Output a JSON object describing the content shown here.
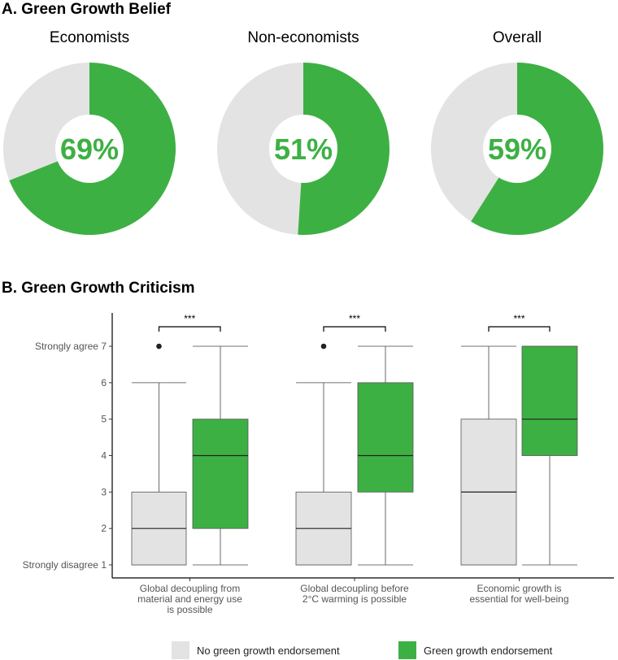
{
  "chart_data": [
    {
      "type": "pie",
      "title": "A. Green Growth Belief",
      "colors": {
        "endorse": "#3db043",
        "no": "#e3e3e3"
      },
      "pies": [
        {
          "label": "Economists",
          "value": 69,
          "text": "69%"
        },
        {
          "label": "Non-economists",
          "value": 51,
          "text": "51%"
        },
        {
          "label": "Overall",
          "value": 59,
          "text": "59%"
        }
      ]
    },
    {
      "type": "boxplot",
      "title": "B. Green Growth Criticism",
      "ylim": [
        1,
        7
      ],
      "yticks": [
        {
          "v": 1,
          "label": "Strongly disagree 1"
        },
        {
          "v": 2,
          "label": "2"
        },
        {
          "v": 3,
          "label": "3"
        },
        {
          "v": 4,
          "label": "4"
        },
        {
          "v": 5,
          "label": "5"
        },
        {
          "v": 6,
          "label": "6"
        },
        {
          "v": 7,
          "label": "Strongly agree 7"
        }
      ],
      "groups": [
        {
          "label": [
            "Global decoupling from",
            "material and energy use",
            "is possible"
          ],
          "significance": "***",
          "no": {
            "min": 1,
            "q1": 1,
            "median": 2,
            "q3": 3,
            "max": 6,
            "outliers": [
              7
            ]
          },
          "yes": {
            "min": 1,
            "q1": 2,
            "median": 4,
            "q3": 5,
            "max": 7,
            "outliers": []
          }
        },
        {
          "label": [
            "Global decoupling before",
            "2°C warming is possible"
          ],
          "significance": "***",
          "no": {
            "min": 1,
            "q1": 1,
            "median": 2,
            "q3": 3,
            "max": 6,
            "outliers": [
              7
            ]
          },
          "yes": {
            "min": 1,
            "q1": 3,
            "median": 4,
            "q3": 6,
            "max": 7,
            "outliers": []
          }
        },
        {
          "label": [
            "Economic growth is",
            "essential for well-being"
          ],
          "significance": "***",
          "no": {
            "min": 1,
            "q1": 1,
            "median": 3,
            "q3": 5,
            "max": 7,
            "outliers": []
          },
          "yes": {
            "min": 1,
            "q1": 4,
            "median": 5,
            "q3": 7,
            "max": 7,
            "outliers": []
          }
        }
      ],
      "legend": {
        "no": "No green growth endorsement",
        "yes": "Green growth endorsement",
        "placement": "bottom"
      }
    }
  ]
}
